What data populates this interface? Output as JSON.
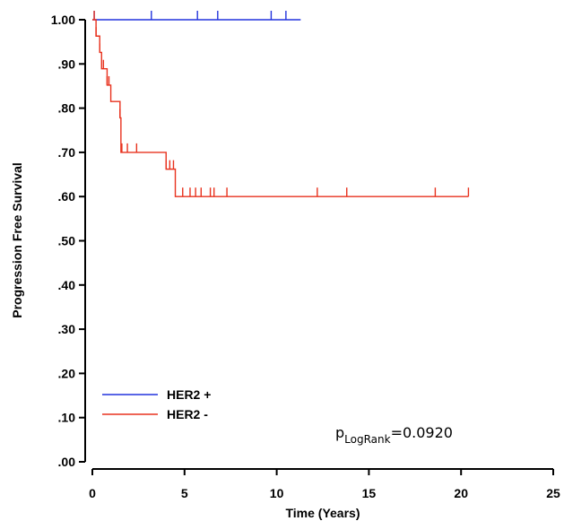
{
  "chart_data": {
    "type": "line",
    "subtype": "kaplan-meier",
    "title": "",
    "xlabel": "Time (Years)",
    "ylabel": "Progression Free Survival",
    "xlim": [
      0,
      25
    ],
    "ylim": [
      0,
      1
    ],
    "x_ticks": [
      "0",
      "5",
      "10",
      "15",
      "20",
      "25"
    ],
    "y_ticks": [
      ".00",
      ".10",
      ".20",
      ".30",
      ".40",
      ".50",
      ".60",
      ".70",
      ".80",
      ".90",
      "1.00"
    ],
    "grid": false,
    "legend_position": "bottom-left",
    "annotation": {
      "prefix": "p",
      "subscript": "LogRank",
      "suffix": "=0.0920"
    },
    "series": [
      {
        "name": "HER2 +",
        "color": "#2233dd",
        "steps": [
          [
            0,
            1.0
          ],
          [
            11.3,
            1.0
          ]
        ],
        "censored": [
          0.1,
          3.2,
          5.7,
          6.8,
          9.7,
          10.5
        ]
      },
      {
        "name": "HER2 -",
        "color": "#e8321e",
        "steps": [
          [
            0,
            1.0
          ],
          [
            0.2,
            0.963
          ],
          [
            0.4,
            0.926
          ],
          [
            0.5,
            0.889
          ],
          [
            0.8,
            0.852
          ],
          [
            1.0,
            0.815
          ],
          [
            1.5,
            0.778
          ],
          [
            1.55,
            0.7
          ],
          [
            4.0,
            0.662
          ],
          [
            4.5,
            0.6
          ],
          [
            20.4,
            0.6
          ]
        ],
        "censored": [
          0.1,
          0.2,
          0.4,
          0.6,
          0.8,
          0.9,
          1.5,
          1.6,
          1.9,
          2.4,
          4.0,
          4.2,
          4.4,
          4.9,
          5.3,
          5.6,
          5.9,
          6.4,
          6.6,
          7.3,
          12.2,
          13.8,
          18.6,
          20.4
        ]
      }
    ]
  }
}
